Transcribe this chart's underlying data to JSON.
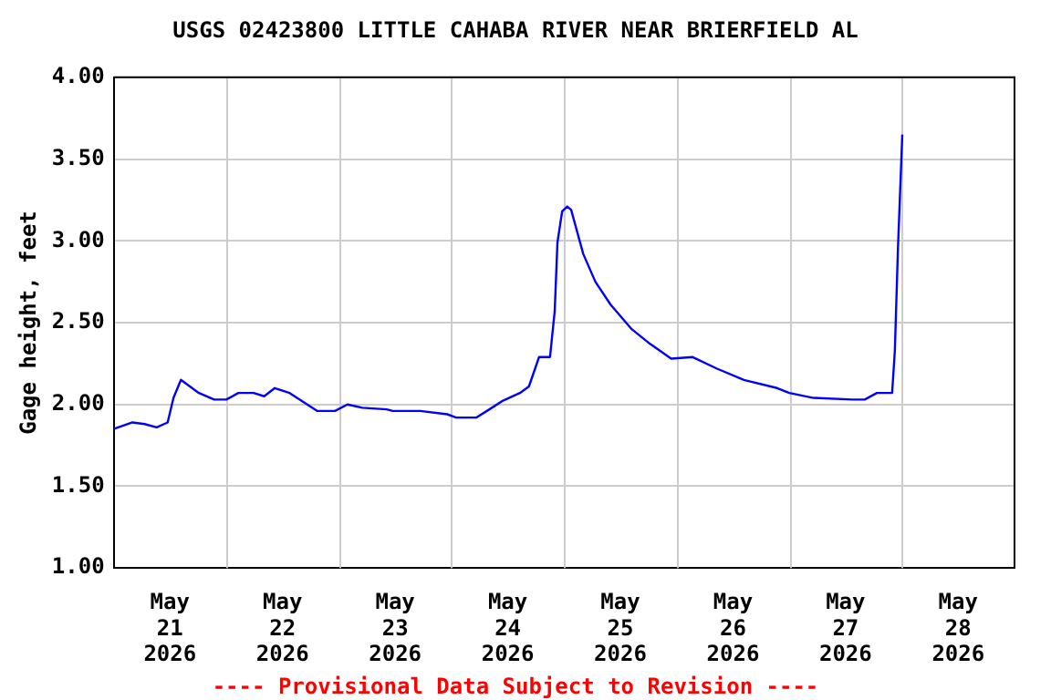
{
  "chart_data": {
    "type": "line",
    "title": "USGS 02423800 LITTLE CAHABA RIVER NEAR BRIERFIELD AL",
    "ylabel": "Gage height, feet",
    "annotations": [
      "---- Provisional Data Subject to Revision ----"
    ],
    "x": [
      "2026-05-21T00:00",
      "2026-05-21T04:00",
      "2026-05-21T06:35",
      "2026-05-21T09:10",
      "2026-05-21T11:30",
      "2026-05-21T12:45",
      "2026-05-21T14:20",
      "2026-05-21T18:10",
      "2026-05-21T21:25",
      "2026-05-22T00:00",
      "2026-05-22T02:35",
      "2026-05-22T05:50",
      "2026-05-22T08:05",
      "2026-05-22T10:20",
      "2026-05-22T13:30",
      "2026-05-22T19:25",
      "2026-05-22T23:10",
      "2026-05-23T01:50",
      "2026-05-23T05:00",
      "2026-05-23T10:10",
      "2026-05-23T11:30",
      "2026-05-23T17:20",
      "2026-05-23T23:05",
      "2026-05-24T01:00",
      "2026-05-24T05:20",
      "2026-05-24T08:05",
      "2026-05-24T10:45",
      "2026-05-24T14:35",
      "2026-05-24T16:30",
      "2026-05-24T17:50",
      "2026-05-24T18:40",
      "2026-05-24T21:00",
      "2026-05-24T22:00",
      "2026-05-24T22:35",
      "2026-05-24T23:35",
      "2026-05-25T00:40",
      "2026-05-25T01:30",
      "2026-05-25T04:05",
      "2026-05-25T06:40",
      "2026-05-25T09:55",
      "2026-05-25T14:25",
      "2026-05-25T18:20",
      "2026-05-25T22:50",
      "2026-05-26T03:20",
      "2026-05-26T08:30",
      "2026-05-26T14:20",
      "2026-05-26T21:25",
      "2026-05-27T00:00",
      "2026-05-27T05:10",
      "2026-05-27T13:30",
      "2026-05-27T16:05",
      "2026-05-27T18:40",
      "2026-05-27T21:55",
      "2026-05-27T22:30",
      "2026-05-27T23:10",
      "2026-05-28T00:05"
    ],
    "series": [
      {
        "color": "#0000ff",
        "values": [
          1.85,
          1.89,
          1.88,
          1.86,
          1.89,
          2.04,
          2.15,
          2.07,
          2.03,
          2.03,
          2.07,
          2.07,
          2.05,
          2.1,
          2.07,
          1.96,
          1.96,
          2.0,
          1.98,
          1.97,
          1.96,
          1.96,
          1.94,
          1.92,
          1.92,
          1.97,
          2.02,
          2.07,
          2.11,
          2.22,
          2.29,
          2.29,
          2.57,
          2.99,
          3.18,
          3.21,
          3.19,
          2.92,
          2.75,
          2.61,
          2.46,
          2.37,
          2.28,
          2.29,
          2.22,
          2.15,
          2.1,
          2.07,
          2.04,
          2.03,
          2.03,
          2.07,
          2.07,
          2.33,
          2.96,
          3.65
        ]
      }
    ],
    "xlim": [
      "2026-05-21T00:00",
      "2026-05-29T00:00"
    ],
    "xticks": [
      {
        "value": "2026-05-21T12:00",
        "label": "May 21 2026"
      },
      {
        "value": "2026-05-22T00:00",
        "label": null
      },
      {
        "value": "2026-05-22T12:00",
        "label": "May 22 2026"
      },
      {
        "value": "2026-05-23T00:00",
        "label": null
      },
      {
        "value": "2026-05-23T12:00",
        "label": "May 23 2026"
      },
      {
        "value": "2026-05-24T00:00",
        "label": null
      },
      {
        "value": "2026-05-24T12:00",
        "label": "May 24 2026"
      },
      {
        "value": "2026-05-25T00:00",
        "label": null
      },
      {
        "value": "2026-05-25T12:00",
        "label": "May 25 2026"
      },
      {
        "value": "2026-05-26T00:00",
        "label": null
      },
      {
        "value": "2026-05-26T12:00",
        "label": "May 26 2026"
      },
      {
        "value": "2026-05-27T00:00",
        "label": null
      },
      {
        "value": "2026-05-27T12:00",
        "label": "May 27 2026"
      },
      {
        "value": "2026-05-28T00:00",
        "label": null
      },
      {
        "value": "2026-05-28T12:00",
        "label": "May 28 2026"
      }
    ],
    "ylim": [
      1.0,
      4.0
    ],
    "yticks": [
      {
        "value": 1.0,
        "label": "1.00"
      },
      {
        "value": 1.5,
        "label": "1.50"
      },
      {
        "value": 2.0,
        "label": "2.00"
      },
      {
        "value": 2.5,
        "label": "2.50"
      },
      {
        "value": 3.0,
        "label": "3.00"
      },
      {
        "value": 3.5,
        "label": "3.50"
      },
      {
        "value": 4.0,
        "label": "4.00"
      }
    ],
    "grid": true,
    "legend": false,
    "marker": "none",
    "line_style": "solid"
  }
}
